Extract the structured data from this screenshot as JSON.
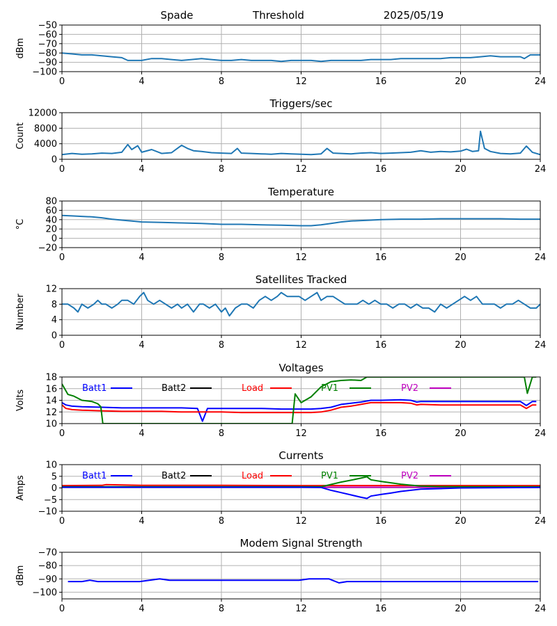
{
  "header": {
    "site": "Spade",
    "mode": "Threshold",
    "date": "2025/05/19"
  },
  "colors": {
    "default": "#1f77b4",
    "Batt1": "#0000ff",
    "Batt2": "#000000",
    "Load": "#ff0000",
    "PV1": "#008000",
    "PV2": "#bf00bf",
    "grid": "#b0b0b0"
  },
  "chart_data": [
    {
      "type": "line",
      "title": "",
      "ylabel": "dBm",
      "xlim": [
        0,
        24
      ],
      "ylim": [
        -100,
        -50
      ],
      "xticks": [
        0,
        4,
        8,
        12,
        16,
        20,
        24
      ],
      "yticks": [
        -100,
        -90,
        -80,
        -70,
        -60,
        -50
      ],
      "grid": true,
      "series": [
        {
          "color": "default",
          "x": [
            0,
            0.5,
            1,
            1.5,
            2,
            2.5,
            3,
            3.3,
            3.6,
            4,
            4.5,
            5,
            5.5,
            6,
            6.5,
            7,
            7.5,
            8,
            8.5,
            9,
            9.5,
            10,
            10.5,
            11,
            11.5,
            12,
            12.5,
            13,
            13.5,
            14,
            14.5,
            15,
            15.5,
            16,
            16.5,
            17,
            17.5,
            18,
            18.5,
            19,
            19.5,
            20,
            20.5,
            21,
            21.5,
            22,
            22.5,
            23,
            23.2,
            23.5,
            24
          ],
          "y": [
            -80,
            -81,
            -82,
            -82,
            -83,
            -84,
            -85,
            -88,
            -88,
            -88,
            -86,
            -86,
            -87,
            -88,
            -87,
            -86,
            -87,
            -88,
            -88,
            -87,
            -88,
            -88,
            -88,
            -89,
            -88,
            -88,
            -88,
            -89,
            -88,
            -88,
            -88,
            -88,
            -87,
            -87,
            -87,
            -86,
            -86,
            -86,
            -86,
            -86,
            -85,
            -85,
            -85,
            -84,
            -83,
            -84,
            -84,
            -84,
            -86,
            -82,
            -82
          ]
        }
      ]
    },
    {
      "type": "line",
      "title": "Triggers/sec",
      "ylabel": "Count",
      "xlim": [
        0,
        24
      ],
      "ylim": [
        0,
        12000
      ],
      "xticks": [
        0,
        4,
        8,
        12,
        16,
        20,
        24
      ],
      "yticks": [
        0,
        4000,
        8000,
        12000
      ],
      "grid": true,
      "series": [
        {
          "color": "default",
          "x": [
            0,
            0.5,
            1,
            1.5,
            2,
            2.5,
            3,
            3.3,
            3.5,
            3.8,
            4,
            4.5,
            5,
            5.5,
            6,
            6.3,
            6.6,
            7,
            7.5,
            8,
            8.5,
            8.8,
            9,
            9.5,
            10,
            10.5,
            11,
            11.5,
            12,
            12.5,
            13,
            13.3,
            13.6,
            14,
            14.5,
            15,
            15.5,
            16,
            16.5,
            17,
            17.5,
            18,
            18.5,
            19,
            19.5,
            20,
            20.3,
            20.6,
            20.9,
            21,
            21.2,
            21.5,
            22,
            22.5,
            23,
            23.3,
            23.6,
            24
          ],
          "y": [
            1200,
            1500,
            1300,
            1400,
            1600,
            1500,
            1800,
            3800,
            2500,
            3500,
            1800,
            2500,
            1500,
            1700,
            3600,
            2800,
            2200,
            2000,
            1700,
            1600,
            1500,
            2800,
            1600,
            1500,
            1400,
            1300,
            1500,
            1400,
            1300,
            1200,
            1400,
            2800,
            1600,
            1500,
            1400,
            1600,
            1700,
            1500,
            1600,
            1700,
            1800,
            2200,
            1800,
            2000,
            1900,
            2100,
            2600,
            2000,
            2200,
            7200,
            2800,
            2000,
            1500,
            1400,
            1600,
            3400,
            1800,
            1200
          ]
        }
      ]
    },
    {
      "type": "line",
      "title": "Temperature",
      "ylabel": "°C",
      "xlim": [
        0,
        24
      ],
      "ylim": [
        -20,
        80
      ],
      "xticks": [
        0,
        4,
        8,
        12,
        16,
        20,
        24
      ],
      "yticks": [
        -20,
        0,
        20,
        40,
        60,
        80
      ],
      "grid": true,
      "series": [
        {
          "color": "default",
          "x": [
            0,
            0.5,
            1,
            1.5,
            2,
            2.5,
            3,
            3.5,
            4,
            5,
            6,
            7,
            8,
            9,
            10,
            11,
            12,
            12.5,
            13,
            13.5,
            14,
            14.5,
            15,
            15.5,
            16,
            17,
            18,
            19,
            20,
            21,
            22,
            23,
            24
          ],
          "y": [
            49,
            48,
            47,
            46,
            44,
            41,
            39,
            37,
            35,
            34,
            33,
            32,
            30,
            30,
            29,
            28,
            27,
            27,
            29,
            32,
            35,
            37,
            38,
            39,
            40,
            41,
            41,
            42,
            42,
            42,
            42,
            41,
            41
          ]
        }
      ]
    },
    {
      "type": "line",
      "title": "Satellites Tracked",
      "ylabel": "Number",
      "xlim": [
        0,
        24
      ],
      "ylim": [
        0,
        12
      ],
      "xticks": [
        0,
        4,
        8,
        12,
        16,
        20,
        24
      ],
      "yticks": [
        0,
        4,
        8,
        12
      ],
      "grid": true,
      "series": [
        {
          "color": "default",
          "x": [
            0,
            0.3,
            0.6,
            0.8,
            1.0,
            1.3,
            1.6,
            1.8,
            2.0,
            2.2,
            2.5,
            2.8,
            3.0,
            3.3,
            3.6,
            3.9,
            4.1,
            4.3,
            4.6,
            4.9,
            5.2,
            5.5,
            5.8,
            6.0,
            6.3,
            6.6,
            6.9,
            7.1,
            7.4,
            7.7,
            8.0,
            8.2,
            8.4,
            8.7,
            9.0,
            9.3,
            9.6,
            9.9,
            10.2,
            10.5,
            10.8,
            11.0,
            11.3,
            11.6,
            11.9,
            12.2,
            12.5,
            12.8,
            13.0,
            13.3,
            13.6,
            13.9,
            14.2,
            14.5,
            14.8,
            15.1,
            15.4,
            15.7,
            16.0,
            16.3,
            16.6,
            16.9,
            17.2,
            17.5,
            17.8,
            18.1,
            18.4,
            18.7,
            19.0,
            19.3,
            19.6,
            19.9,
            20.2,
            20.5,
            20.8,
            21.1,
            21.4,
            21.7,
            22.0,
            22.3,
            22.6,
            22.9,
            23.2,
            23.5,
            23.8,
            24
          ],
          "y": [
            8,
            8,
            7,
            6,
            8,
            7,
            8,
            9,
            8,
            8,
            7,
            8,
            9,
            9,
            8,
            10,
            11,
            9,
            8,
            9,
            8,
            7,
            8,
            7,
            8,
            6,
            8,
            8,
            7,
            8,
            6,
            7,
            5,
            7,
            8,
            8,
            7,
            9,
            10,
            9,
            10,
            11,
            10,
            10,
            10,
            9,
            10,
            11,
            9,
            10,
            10,
            9,
            8,
            8,
            8,
            9,
            8,
            9,
            8,
            8,
            7,
            8,
            8,
            7,
            8,
            7,
            7,
            6,
            8,
            7,
            8,
            9,
            10,
            9,
            10,
            8,
            8,
            8,
            7,
            8,
            8,
            9,
            8,
            7,
            7,
            8
          ]
        }
      ]
    },
    {
      "type": "line",
      "title": "Voltages",
      "ylabel": "Volts",
      "xlim": [
        0,
        24
      ],
      "ylim": [
        10,
        18
      ],
      "xticks": [
        0,
        4,
        8,
        12,
        16,
        20,
        24
      ],
      "yticks": [
        10,
        12,
        14,
        16,
        18
      ],
      "grid": true,
      "legend": {
        "entries": [
          "Batt1",
          "Batt2",
          "Load",
          "PV1",
          "PV2"
        ],
        "placement": "top"
      },
      "series": [
        {
          "name": "Batt1",
          "color": "Batt1",
          "x": [
            0,
            0.2,
            0.5,
            1,
            2,
            3,
            4,
            5,
            6,
            6.8,
            7.05,
            7.3,
            8,
            9,
            10,
            11,
            12,
            12.5,
            13,
            13.5,
            14,
            14.5,
            15,
            15.5,
            16,
            17,
            17.5,
            17.8,
            18,
            19,
            20,
            21,
            22,
            23,
            23.3,
            23.6,
            23.8
          ],
          "y": [
            13.6,
            13.2,
            13.0,
            12.9,
            12.8,
            12.7,
            12.7,
            12.7,
            12.7,
            12.6,
            10.4,
            12.6,
            12.6,
            12.6,
            12.6,
            12.5,
            12.5,
            12.5,
            12.6,
            12.8,
            13.3,
            13.5,
            13.7,
            14.0,
            14.0,
            14.1,
            14.0,
            13.7,
            13.8,
            13.8,
            13.8,
            13.8,
            13.8,
            13.8,
            13.1,
            13.8,
            13.8
          ]
        },
        {
          "name": "Load",
          "color": "Load",
          "x": [
            0,
            0.2,
            0.5,
            1,
            2,
            3,
            4,
            5,
            6,
            7,
            8,
            9,
            10,
            11,
            12,
            12.5,
            13,
            13.5,
            14,
            14.5,
            15,
            15.5,
            16,
            17,
            17.5,
            17.8,
            18,
            19,
            20,
            21,
            22,
            23,
            23.3,
            23.6,
            23.8
          ],
          "y": [
            13.2,
            12.6,
            12.4,
            12.3,
            12.2,
            12.1,
            12.1,
            12.1,
            12.0,
            12.0,
            12.0,
            11.9,
            11.9,
            11.9,
            11.9,
            11.9,
            12.0,
            12.3,
            12.8,
            13.0,
            13.3,
            13.6,
            13.6,
            13.6,
            13.5,
            13.2,
            13.3,
            13.2,
            13.2,
            13.2,
            13.2,
            13.2,
            12.6,
            13.2,
            13.2
          ]
        },
        {
          "name": "PV1",
          "color": "PV1",
          "x": [
            0,
            0.3,
            0.6,
            1,
            1.5,
            1.8,
            1.95,
            2.05,
            11.55,
            11.7,
            12.0,
            12.5,
            13.0,
            13.5,
            14,
            14.5,
            15,
            15.3,
            23.2,
            23.35,
            23.6,
            23.8
          ],
          "y": [
            16.8,
            15.0,
            14.7,
            14.0,
            13.8,
            13.4,
            12.9,
            10.0,
            10.0,
            15.1,
            13.6,
            14.6,
            16.3,
            17.2,
            17.4,
            17.5,
            17.4,
            18.0,
            18.0,
            15.2,
            18.0,
            18.0
          ]
        },
        {
          "name": "Batt2",
          "color": "Batt2",
          "x": [],
          "y": []
        },
        {
          "name": "PV2",
          "color": "PV2",
          "x": [],
          "y": []
        }
      ]
    },
    {
      "type": "line",
      "title": "Currents",
      "ylabel": "Amps",
      "xlim": [
        0,
        24
      ],
      "ylim": [
        -10,
        10
      ],
      "xticks": [
        0,
        4,
        8,
        12,
        16,
        20,
        24
      ],
      "yticks": [
        -10,
        -5,
        0,
        5,
        10
      ],
      "grid": true,
      "legend": {
        "entries": [
          "Batt1",
          "Batt2",
          "Load",
          "PV1",
          "PV2"
        ],
        "placement": "top"
      },
      "series": [
        {
          "name": "Load",
          "color": "Load",
          "x": [
            0,
            2,
            2.2,
            4,
            8,
            12,
            16,
            20,
            24
          ],
          "y": [
            1.0,
            1.1,
            1.4,
            1.1,
            1.1,
            1.0,
            1.0,
            1.0,
            1.0
          ]
        },
        {
          "name": "PV2",
          "color": "PV2",
          "x": [
            0,
            4,
            8,
            12,
            16,
            20,
            24
          ],
          "y": [
            0.3,
            0.3,
            0.3,
            0.3,
            0.3,
            0.3,
            0.3
          ]
        },
        {
          "name": "PV1",
          "color": "PV1",
          "x": [
            0,
            12,
            13,
            13.5,
            14,
            14.5,
            15,
            15.3,
            15.5,
            16,
            16.5,
            17,
            17.5,
            18,
            19,
            20,
            24
          ],
          "y": [
            0.5,
            0.5,
            0.5,
            1.5,
            2.5,
            3.3,
            4.2,
            4.8,
            3.5,
            2.8,
            2.2,
            1.6,
            1.2,
            0.8,
            0.6,
            0.5,
            0.5
          ]
        },
        {
          "name": "Batt1",
          "color": "Batt1",
          "x": [
            0,
            12,
            13,
            13.5,
            14,
            14.5,
            15,
            15.3,
            15.5,
            16,
            16.5,
            17,
            17.5,
            18,
            19,
            20,
            24
          ],
          "y": [
            0.3,
            0.3,
            0.2,
            -1.0,
            -2.0,
            -3.0,
            -4.0,
            -4.5,
            -3.5,
            -2.8,
            -2.2,
            -1.5,
            -1.0,
            -0.5,
            -0.3,
            0.0,
            0.2
          ]
        },
        {
          "name": "Batt2",
          "color": "Batt2",
          "x": [],
          "y": []
        }
      ]
    },
    {
      "type": "line",
      "title": "Modem Signal Strength",
      "ylabel": "dBm",
      "xlim": [
        0,
        24
      ],
      "ylim": [
        -105,
        -70
      ],
      "xticks": [
        0,
        4,
        8,
        12,
        16,
        20,
        24
      ],
      "yticks": [
        -100,
        -90,
        -80,
        -70
      ],
      "grid": true,
      "series": [
        {
          "color": "Batt1",
          "x": [
            0.3,
            1.0,
            1.4,
            1.8,
            2.0,
            3.0,
            3.9,
            4.9,
            5.4,
            8,
            11.9,
            12.4,
            13.0,
            13.4,
            13.9,
            14.3,
            16,
            20,
            23.9
          ],
          "y": [
            -92,
            -92,
            -91,
            -92,
            -92,
            -92,
            -92,
            -90,
            -91,
            -91,
            -91,
            -90,
            -90,
            -90,
            -93,
            -92,
            -92,
            -92,
            -92
          ]
        }
      ]
    }
  ]
}
